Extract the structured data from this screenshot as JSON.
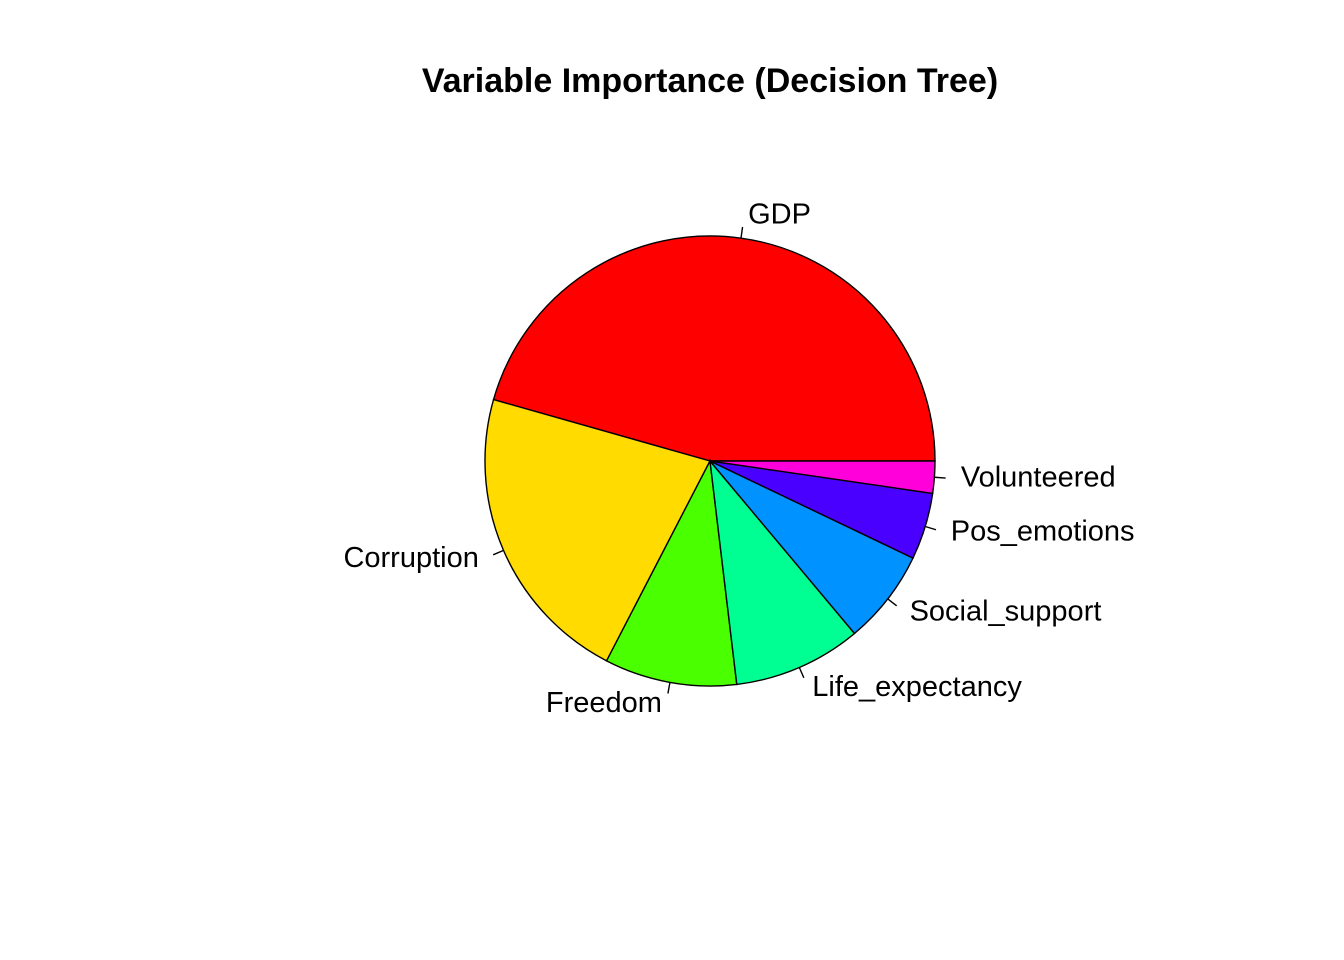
{
  "chart_data": {
    "type": "pie",
    "title": "Variable Importance (Decision Tree)",
    "direction": "counterclockwise",
    "start_angle_deg": 0,
    "slices": [
      {
        "label": "GDP",
        "value": 45.6,
        "color": "#FF0000"
      },
      {
        "label": "Corruption",
        "value": 21.8,
        "color": "#FFDB00"
      },
      {
        "label": "Freedom",
        "value": 9.5,
        "color": "#49FF00"
      },
      {
        "label": "Life_expectancy",
        "value": 9.2,
        "color": "#00FF92"
      },
      {
        "label": "Social_support",
        "value": 6.8,
        "color": "#0092FF"
      },
      {
        "label": "Pos_emotions",
        "value": 4.8,
        "color": "#4900FF"
      },
      {
        "label": "Volunteered",
        "value": 2.3,
        "color": "#FF00DB"
      }
    ],
    "legend": "none"
  }
}
